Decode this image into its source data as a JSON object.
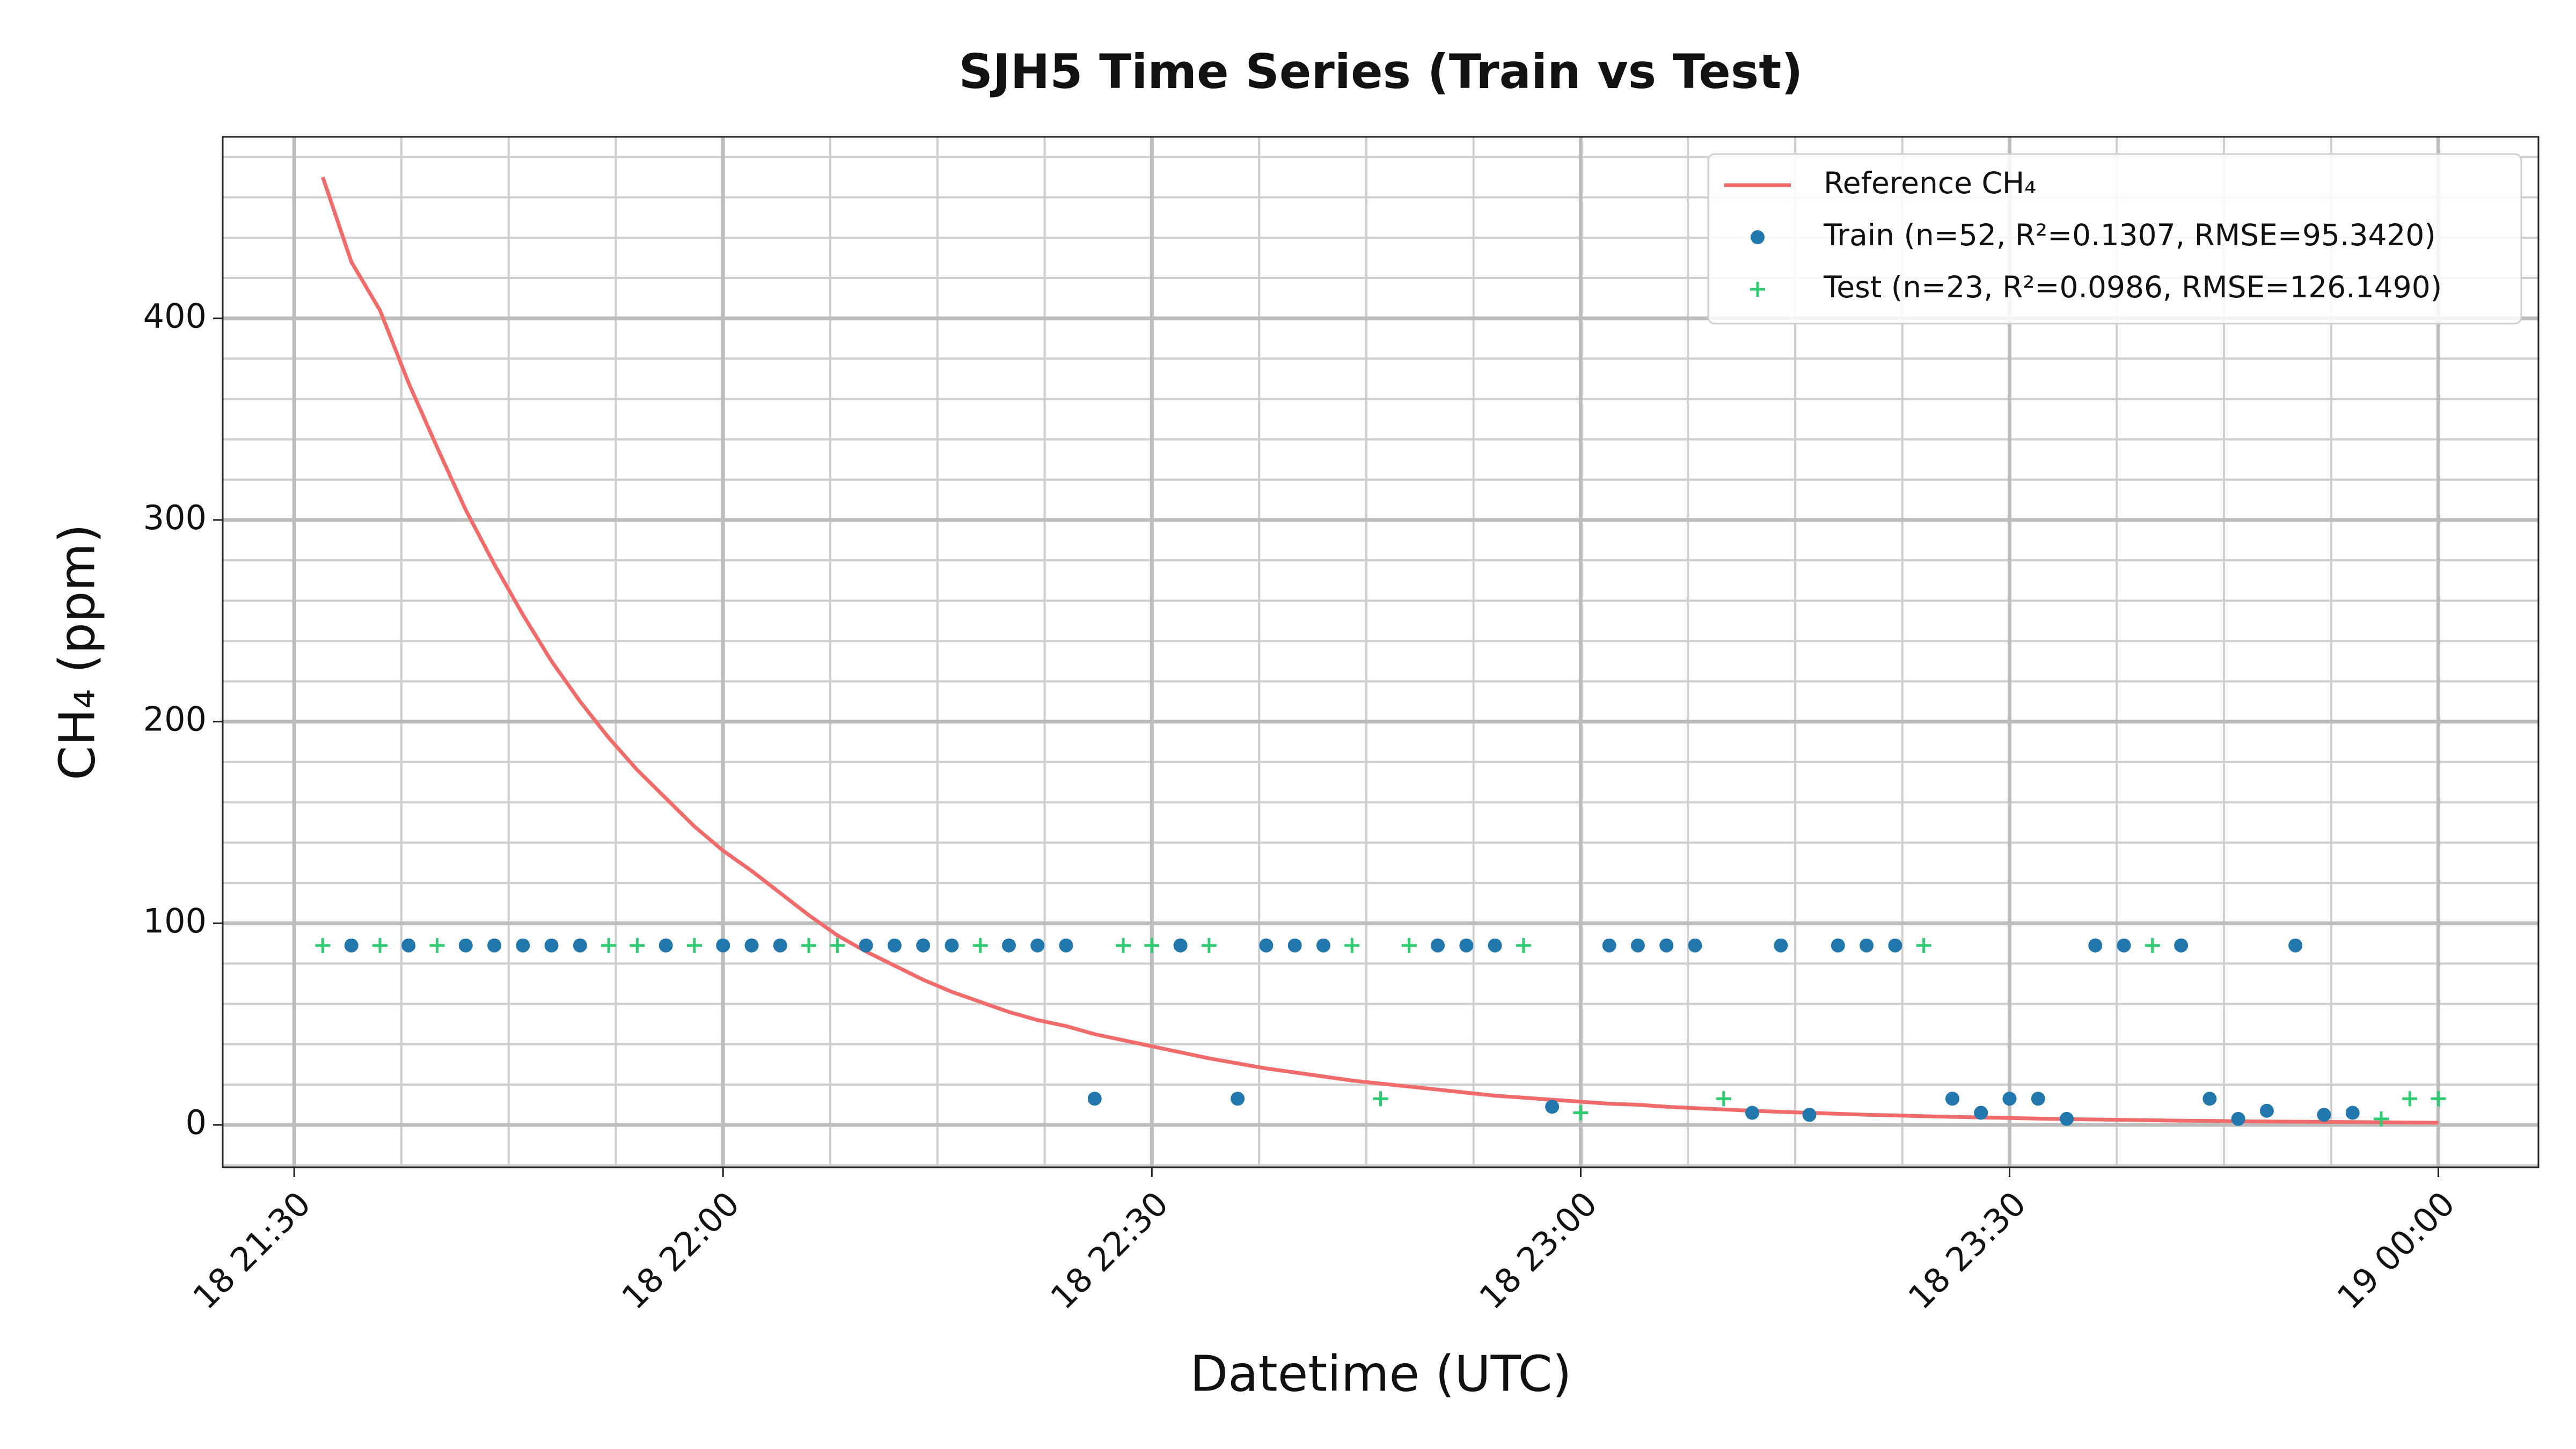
{
  "chart_data": {
    "type": "line",
    "title": "SJH5 Time Series (Train vs Test)",
    "x_label": "Datetime (UTC)",
    "y_label": "CH₄ (ppm)",
    "xlim": [
      "18 21:25",
      "19 00:07"
    ],
    "xticks": [
      "18 21:30",
      "18 22:00",
      "18 22:30",
      "18 23:00",
      "18 23:30",
      "19 00:00"
    ],
    "ylim": [
      -21,
      490
    ],
    "yticks": [
      0,
      100,
      200,
      300,
      400
    ],
    "grid": true,
    "minor_grid": true,
    "legend": "upper right",
    "series": [
      {
        "name": "Reference CH₄",
        "type": "line",
        "color": "#f26b6b",
        "x": [
          "18 21:32",
          "18 21:34",
          "18 21:36",
          "18 21:38",
          "18 21:40",
          "18 21:42",
          "18 21:44",
          "18 21:46",
          "18 21:48",
          "18 21:50",
          "18 21:52",
          "18 21:54",
          "18 21:56",
          "18 21:58",
          "18 22:00",
          "18 22:02",
          "18 22:04",
          "18 22:06",
          "18 22:08",
          "18 22:10",
          "18 22:12",
          "18 22:14",
          "18 22:16",
          "18 22:18",
          "18 22:20",
          "18 22:22",
          "18 22:24",
          "18 22:26",
          "18 22:28",
          "18 22:30",
          "18 22:32",
          "18 22:34",
          "18 22:36",
          "18 22:38",
          "18 22:40",
          "18 22:42",
          "18 22:44",
          "18 22:46",
          "18 22:48",
          "18 22:50",
          "18 22:52",
          "18 22:54",
          "18 22:56",
          "18 22:58",
          "18 23:00",
          "18 23:02",
          "18 23:04",
          "18 23:06",
          "18 23:08",
          "18 23:10",
          "18 23:12",
          "18 23:14",
          "18 23:16",
          "18 23:18",
          "18 23:20",
          "18 23:22",
          "18 23:24",
          "18 23:26",
          "18 23:28",
          "18 23:30",
          "18 23:32",
          "18 23:34",
          "18 23:36",
          "18 23:38",
          "18 23:40",
          "18 23:42",
          "18 23:44",
          "18 23:46",
          "18 23:48",
          "18 23:50",
          "18 23:52",
          "18 23:54",
          "18 23:56",
          "18 23:58",
          "19 00:00"
        ],
        "values": [
          470,
          428,
          404,
          368,
          336,
          305,
          278,
          253,
          230,
          210,
          192,
          176,
          162,
          148,
          136,
          126,
          115,
          104,
          94,
          86,
          79,
          72,
          66,
          61,
          56,
          52,
          49,
          45,
          42,
          39,
          36,
          33,
          30.5,
          28,
          26,
          24,
          22,
          20.5,
          19,
          17.5,
          16,
          14.5,
          13.5,
          12.5,
          11.5,
          10.5,
          10,
          9,
          8.3,
          7.7,
          7,
          6.5,
          6,
          5.5,
          5,
          4.7,
          4.3,
          4,
          3.7,
          3.4,
          3.1,
          2.9,
          2.7,
          2.5,
          2.3,
          2.1,
          2,
          1.8,
          1.7,
          1.6,
          1.5,
          1.4,
          1.3,
          1.2,
          1.1
        ]
      },
      {
        "name": "Train (n=52, R²=0.1307, RMSE=95.3420)",
        "type": "scatter",
        "marker": "circle",
        "color": "#2278ad",
        "x": [
          "18 21:34",
          "18 21:38",
          "18 21:42",
          "18 21:44",
          "18 21:46",
          "18 21:48",
          "18 21:50",
          "18 21:56",
          "18 22:00",
          "18 22:02",
          "18 22:04",
          "18 22:10",
          "18 22:12",
          "18 22:14",
          "18 22:16",
          "18 22:20",
          "18 22:22",
          "18 22:24",
          "18 22:26",
          "18 22:32",
          "18 22:36",
          "18 22:38",
          "18 22:40",
          "18 22:42",
          "18 22:50",
          "18 22:52",
          "18 22:54",
          "18 22:58",
          "18 23:02",
          "18 23:04",
          "18 23:06",
          "18 23:08",
          "18 23:12",
          "18 23:14",
          "18 23:16",
          "18 23:18",
          "18 23:20",
          "18 23:22",
          "18 23:26",
          "18 23:28",
          "18 23:30",
          "18 23:32",
          "18 23:34",
          "18 23:36",
          "18 23:38",
          "18 23:42",
          "18 23:44",
          "18 23:46",
          "18 23:48",
          "18 23:50",
          "18 23:52",
          "18 23:54"
        ],
        "values": [
          89,
          89,
          89,
          89,
          89,
          89,
          89,
          89,
          89,
          89,
          89,
          89,
          89,
          89,
          89,
          89,
          89,
          89,
          13,
          89,
          13,
          89,
          89,
          89,
          89,
          89,
          89,
          9,
          89,
          89,
          89,
          89,
          6,
          89,
          5,
          89,
          89,
          89,
          13,
          6,
          13,
          13,
          3,
          89,
          89,
          89,
          13,
          3,
          7,
          89,
          5,
          6
        ]
      },
      {
        "name": "Test (n=23, R²=0.0986, RMSE=126.1490)",
        "type": "scatter",
        "marker": "plus",
        "color": "#2ecc71",
        "x": [
          "18 21:32",
          "18 21:36",
          "18 21:40",
          "18 21:52",
          "18 21:54",
          "18 21:58",
          "18 22:06",
          "18 22:08",
          "18 22:18",
          "18 22:28",
          "18 22:30",
          "18 22:34",
          "18 22:44",
          "18 22:46",
          "18 22:48",
          "18 22:56",
          "18 23:00",
          "18 23:10",
          "18 23:24",
          "18 23:40",
          "18 23:56",
          "18 23:58",
          "19 00:00"
        ],
        "values": [
          89,
          89,
          89,
          89,
          89,
          89,
          89,
          89,
          89,
          89,
          89,
          89,
          89,
          13,
          89,
          89,
          6,
          13,
          89,
          89,
          3,
          13,
          13
        ]
      }
    ]
  }
}
